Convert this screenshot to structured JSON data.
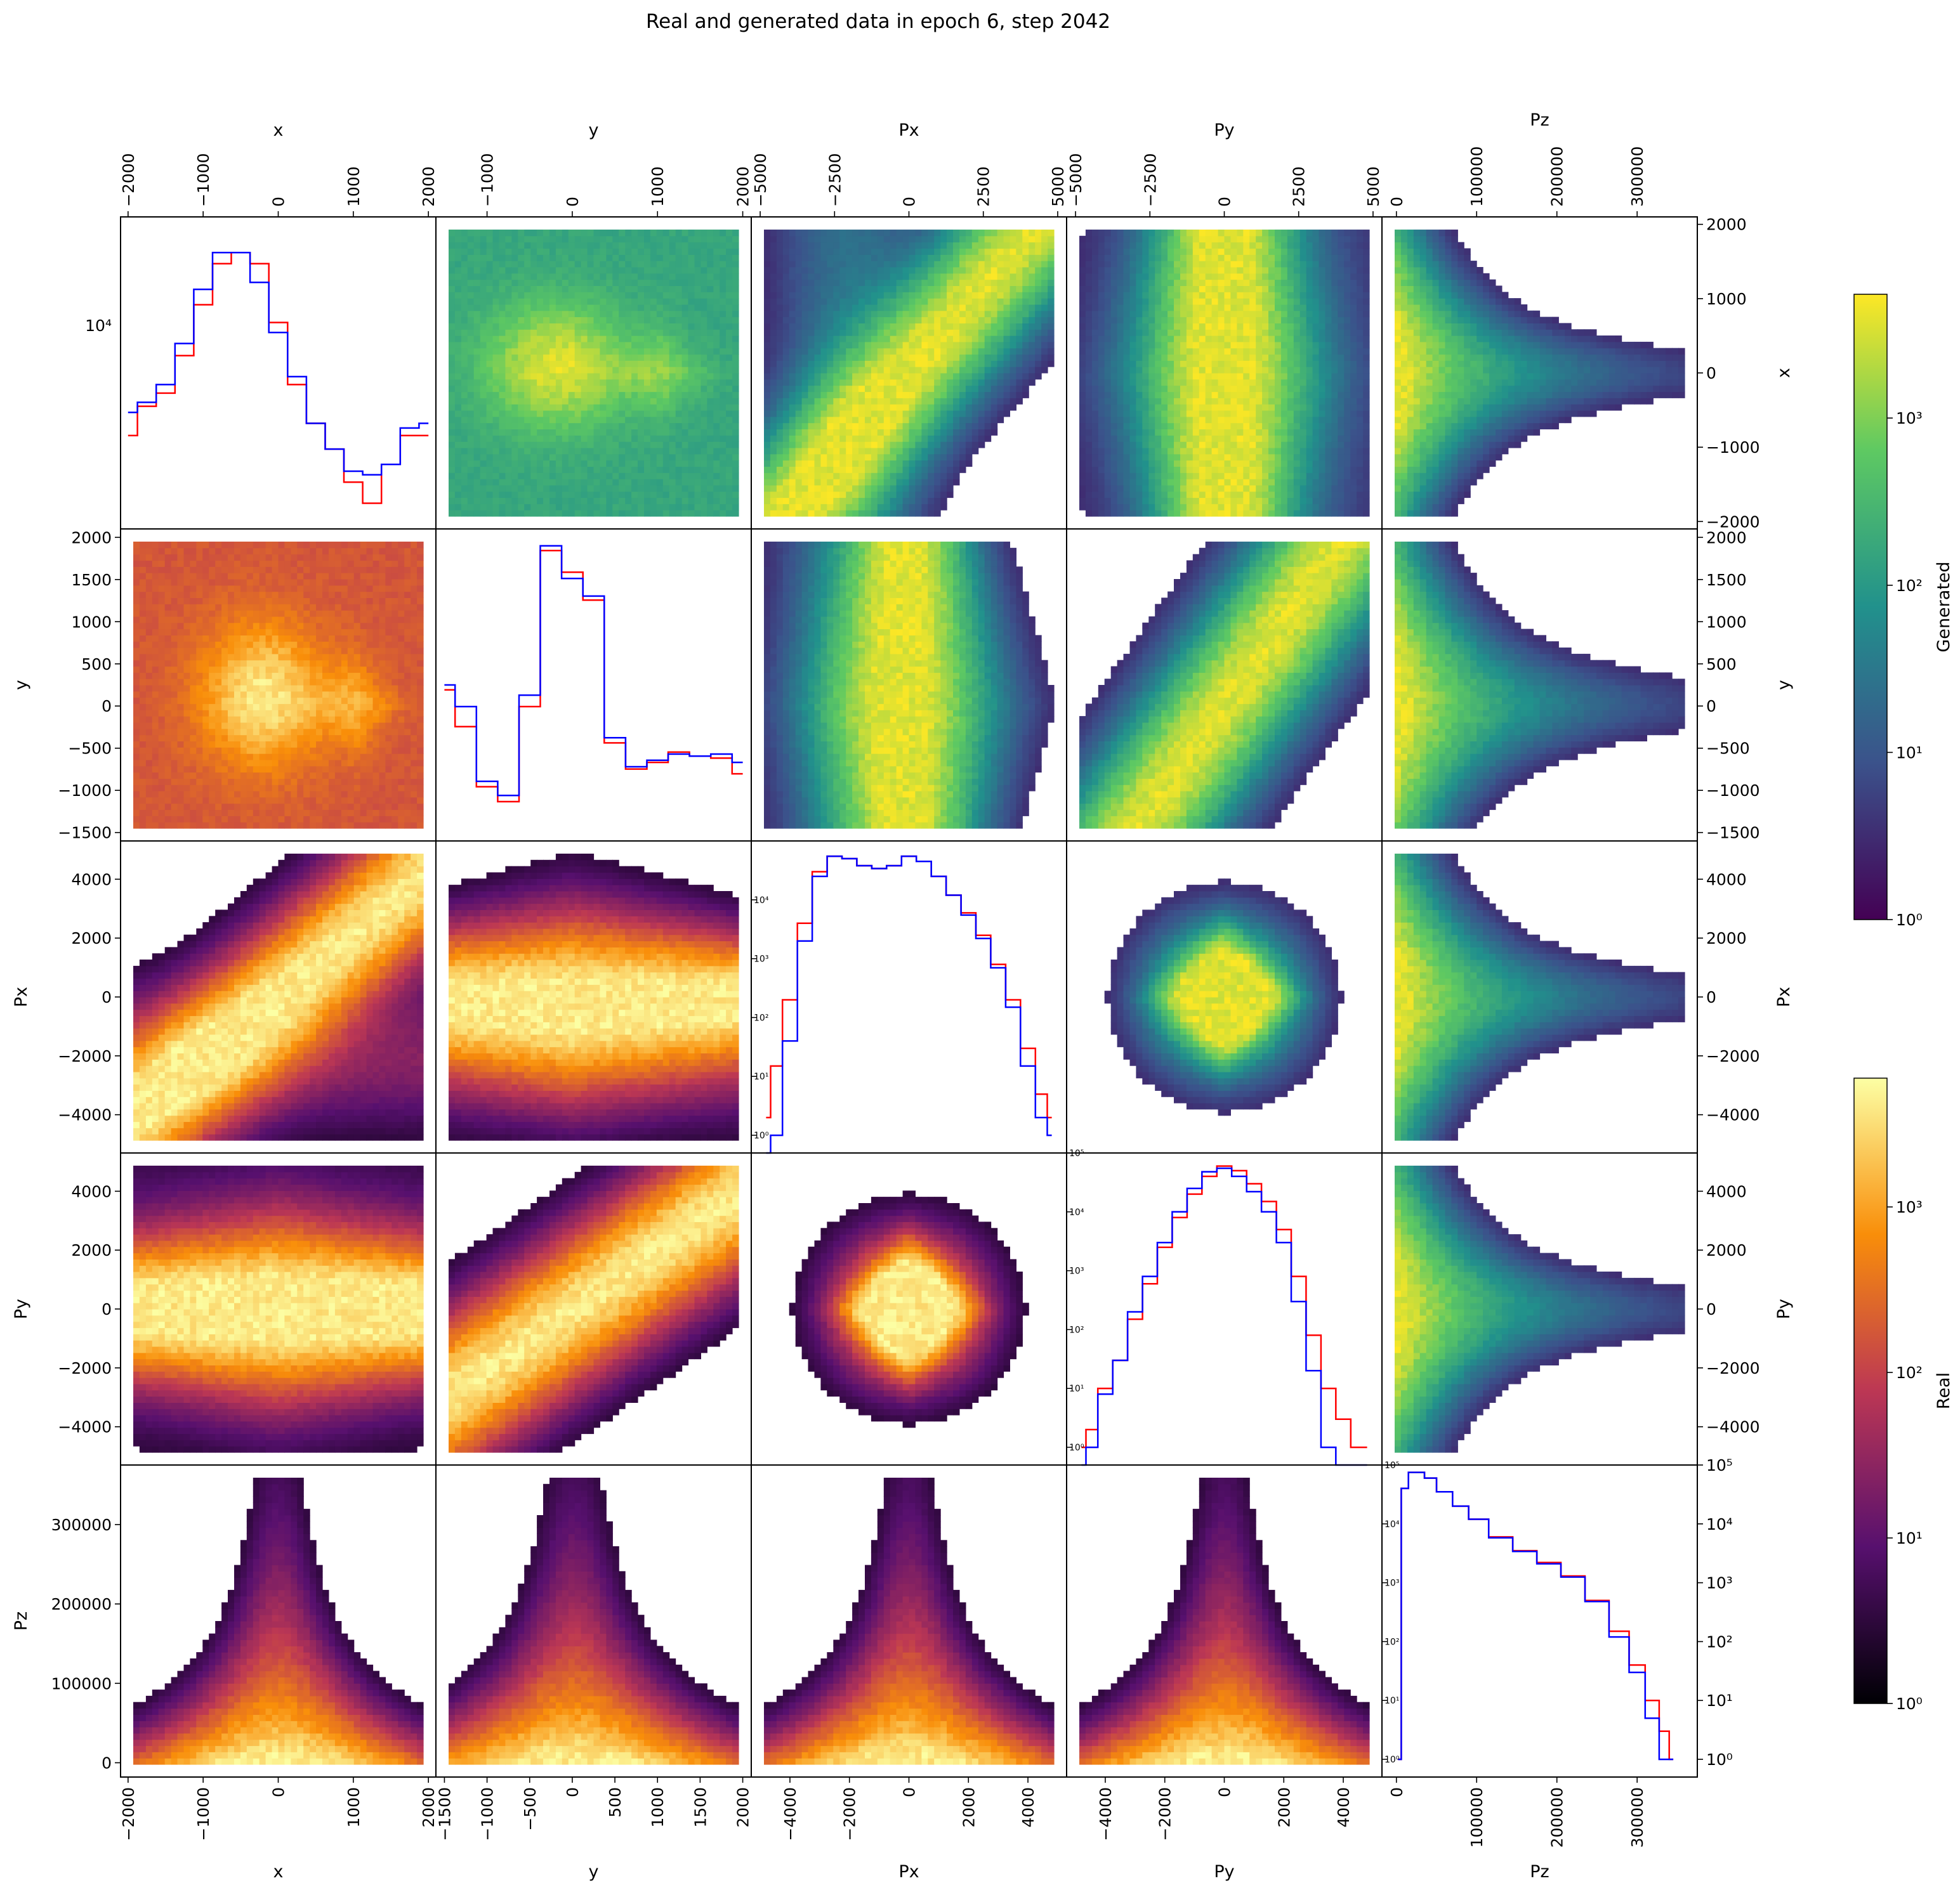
{
  "title": "Real and generated data in epoch 6, step 2042",
  "variables": [
    "x",
    "y",
    "Px",
    "Py",
    "Pz"
  ],
  "colorbars": [
    {
      "label": "Generated",
      "colormap": "viridis",
      "scale": "log",
      "range": [
        1,
        5500
      ],
      "ticks": [
        "10⁰",
        "10¹",
        "10²",
        "10³"
      ]
    },
    {
      "label": "Real",
      "colormap": "inferno",
      "scale": "log",
      "range": [
        1,
        6000
      ],
      "ticks": [
        "10⁰",
        "10¹",
        "10²",
        "10³"
      ]
    }
  ],
  "colors": {
    "real_hist": "#ff0000",
    "generated_hist": "#0000ff",
    "frame": "#000000"
  },
  "axes": {
    "x": {
      "range": [
        -2100,
        2100
      ],
      "ticks": [
        -2000,
        -1000,
        0,
        1000,
        2000
      ],
      "tick_labels": [
        "−2000",
        "−1000",
        "0",
        "1000",
        "2000"
      ]
    },
    "y": {
      "range": [
        -1600,
        2100
      ],
      "ticks": [
        -1500,
        -1000,
        -500,
        0,
        500,
        1000,
        1500,
        2000
      ],
      "tick_labels": [
        "−1500",
        "−1000",
        "−500",
        "0",
        "500",
        "1000",
        "1500",
        "2000"
      ]
    },
    "Px": {
      "range": [
        -5300,
        5300
      ],
      "ticks": [
        -4000,
        -2000,
        0,
        2000,
        4000
      ],
      "tick_labels": [
        "−4000",
        "−2000",
        "0",
        "2000",
        "4000"
      ]
    },
    "Py": {
      "range": [
        -5300,
        5300
      ],
      "ticks": [
        -4000,
        -2000,
        0,
        2000,
        4000
      ],
      "tick_labels": [
        "−4000",
        "−2000",
        "0",
        "2000",
        "4000"
      ]
    },
    "Pz": {
      "range": [
        -18000,
        375000
      ],
      "ticks": [
        0,
        100000,
        200000,
        300000
      ],
      "tick_labels": [
        "0",
        "100000",
        "200000",
        "300000"
      ]
    }
  },
  "axes_top": {
    "y": {
      "ticks": [
        -1000,
        0,
        1000,
        2000
      ],
      "tick_labels": [
        "−1000",
        "0",
        "1000",
        "2000"
      ]
    },
    "Px": {
      "ticks": [
        -5000,
        -2500,
        0,
        2500,
        5000
      ],
      "tick_labels": [
        "−5000",
        "−2500",
        "0",
        "2500",
        "5000"
      ]
    },
    "Py": {
      "ticks": [
        -5000,
        -2500,
        0,
        2500,
        5000
      ],
      "tick_labels": [
        "−5000",
        "−2500",
        "0",
        "2500",
        "5000"
      ]
    }
  },
  "chart_data": {
    "type": "pairplot",
    "title": "Real and generated data in epoch 6, step 2042",
    "variables": [
      "x",
      "y",
      "Px",
      "Py",
      "Pz"
    ],
    "upper_triangle": "Generated (2D histogram, log color)",
    "lower_triangle": "Real (2D histogram, log color)",
    "diagonal": [
      {
        "variable": "x",
        "yscale": "log",
        "ylim": [
          2000,
          30000
        ],
        "x": [
          -2000,
          -1750,
          -1500,
          -1250,
          -1000,
          -750,
          -500,
          -250,
          0,
          250,
          500,
          750,
          1000,
          1250,
          1500,
          1750,
          2000
        ],
        "series": [
          {
            "name": "Real",
            "values": [
              4500,
              5800,
              6500,
              9000,
              14000,
              20000,
              22000,
              20000,
              12000,
              7000,
              5000,
              4000,
              3000,
              2500,
              3500,
              4500,
              4500
            ]
          },
          {
            "name": "Generated",
            "values": [
              5500,
              6000,
              7000,
              10000,
              16000,
              22000,
              22000,
              17000,
              11000,
              7500,
              5000,
              4000,
              3300,
              3200,
              3500,
              4800,
              5000
            ]
          }
        ]
      },
      {
        "variable": "y",
        "yscale": "log",
        "ylim": [
          2000,
          50000
        ],
        "x": [
          -1500,
          -1250,
          -1000,
          -750,
          -500,
          -250,
          0,
          250,
          500,
          750,
          1000,
          1250,
          1500,
          1750,
          2000
        ],
        "series": [
          {
            "name": "Real",
            "values": [
              9500,
              6500,
              3500,
              3000,
              8000,
              40000,
              32000,
              24000,
              5500,
              4200,
              4500,
              5000,
              4800,
              4700,
              4000
            ]
          },
          {
            "name": "Generated",
            "values": [
              10000,
              8000,
              3700,
              3200,
              9000,
              42000,
              30000,
              25000,
              5800,
              4300,
              4600,
              4900,
              4800,
              4900,
              4500
            ]
          }
        ]
      },
      {
        "variable": "Px",
        "yscale": "log",
        "ylim": [
          0.5,
          100000
        ],
        "ytick_labels": [
          "10⁰",
          "10¹",
          "10²",
          "10³",
          "10⁴"
        ],
        "x": [
          -4800,
          -4500,
          -4000,
          -3500,
          -3000,
          -2500,
          -2000,
          -1500,
          -1000,
          -500,
          0,
          500,
          1000,
          1500,
          2000,
          2500,
          3000,
          3500,
          4000,
          4500,
          4800
        ],
        "series": [
          {
            "name": "Real",
            "values": [
              2,
              15,
              200,
              4000,
              30000,
              55000,
              50000,
              38000,
              34000,
              38000,
              55000,
              45000,
              25000,
              12000,
              6000,
              2500,
              800,
              200,
              30,
              5,
              2
            ]
          },
          {
            "name": "Generated",
            "values": [
              0.5,
              1,
              40,
              2000,
              25000,
              55000,
              50000,
              38000,
              34000,
              38000,
              55000,
              45000,
              25000,
              12000,
              5500,
              2200,
              700,
              150,
              15,
              2,
              1
            ]
          }
        ]
      },
      {
        "variable": "Py",
        "yscale": "log",
        "ylim": [
          0.5,
          100000
        ],
        "ytick_labels": [
          "10⁰",
          "10¹",
          "10²",
          "10³",
          "10⁴",
          "10⁵"
        ],
        "x": [
          -4800,
          -4500,
          -4000,
          -3500,
          -3000,
          -2500,
          -2000,
          -1500,
          -1000,
          -500,
          0,
          500,
          1000,
          1500,
          2000,
          2500,
          3000,
          3500,
          4000,
          4500,
          4800
        ],
        "series": [
          {
            "name": "Real",
            "values": [
              1,
              2,
              10,
              30,
              150,
              600,
              2500,
              8000,
              20000,
              40000,
              60000,
              50000,
              30000,
              15000,
              5000,
              800,
              80,
              10,
              3,
              1,
              1
            ]
          },
          {
            "name": "Generated",
            "values": [
              0.5,
              1,
              8,
              30,
              200,
              800,
              3000,
              10000,
              25000,
              48000,
              55000,
              40000,
              22000,
              10000,
              3000,
              300,
              20,
              1,
              0.5,
              0.5,
              0.5
            ]
          }
        ]
      },
      {
        "variable": "Pz",
        "yscale": "log",
        "ylim": [
          0.5,
          100000
        ],
        "ytick_labels": [
          "10⁰",
          "10¹",
          "10²",
          "10³",
          "10⁴",
          "10⁵"
        ],
        "x": [
          2000,
          10000,
          20000,
          30000,
          40000,
          60000,
          80000,
          100000,
          130000,
          160000,
          190000,
          220000,
          250000,
          280000,
          300000,
          320000,
          335000,
          345000
        ],
        "series": [
          {
            "name": "Real",
            "values": [
              1,
              40000,
              75000,
              75000,
              60000,
              35000,
              20000,
              12000,
              6000,
              3500,
              2200,
              1300,
              500,
              150,
              40,
              10,
              3,
              1
            ]
          },
          {
            "name": "Generated",
            "values": [
              1,
              40000,
              75000,
              75000,
              60000,
              35000,
              20000,
              12000,
              5800,
              3400,
              2100,
              1250,
              480,
              120,
              30,
              5,
              1,
              1
            ]
          }
        ]
      }
    ]
  }
}
